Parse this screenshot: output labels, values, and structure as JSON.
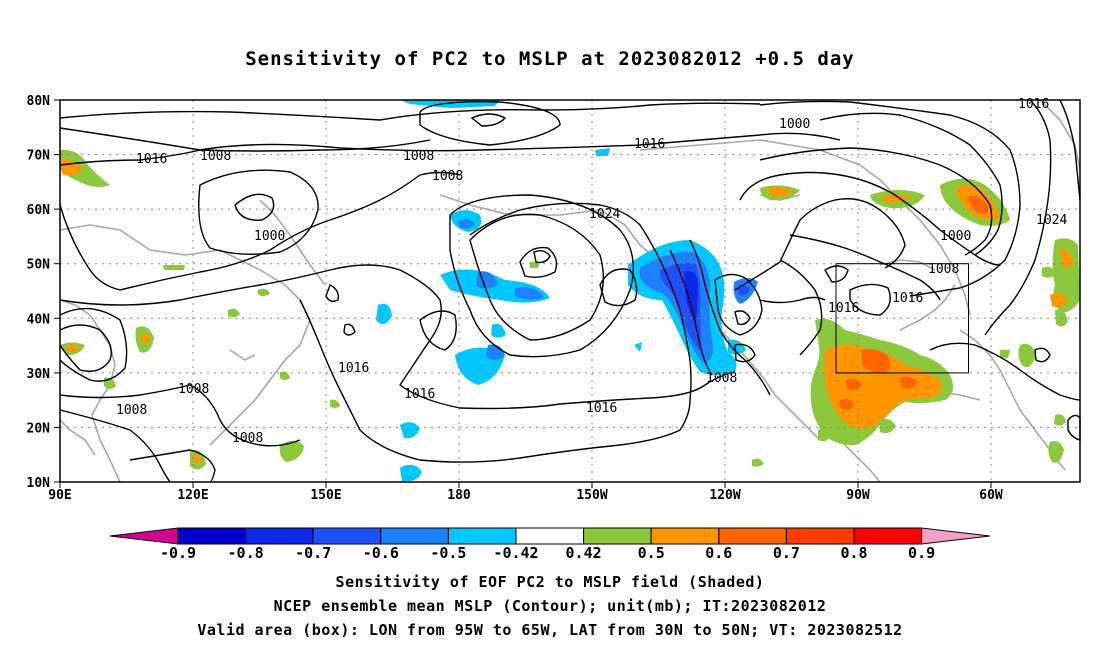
{
  "title": "Sensitivity of PC2 to MSLP at 2023082012 +0.5 day",
  "lat_labels": [
    "80N",
    "70N",
    "60N",
    "50N",
    "40N",
    "30N",
    "20N",
    "10N"
  ],
  "lon_labels": [
    "90E",
    "120E",
    "150E",
    "180",
    "150W",
    "120W",
    "90W",
    "60W"
  ],
  "contour_labels": {
    "c1016_a": "1016",
    "c1008_a": "1008",
    "c1008_b": "1008",
    "c1008_c": "1008",
    "c1016_b": "1016",
    "c1000_a": "1000",
    "c1000_b": "1000",
    "c1024_a": "1024",
    "c1000_c": "1000",
    "c1008_d": "1008",
    "c1016_c": "1016",
    "c1016_d": "1016",
    "c1024_b": "1024",
    "c1016_e": "1016",
    "c1016_f": "1016",
    "c1016_g": "1016",
    "c1008_e": "1008",
    "c1008_f": "1008",
    "c1008_g": "1008",
    "c1008_h": "1008"
  },
  "colorbar": {
    "labels": [
      "-0.9",
      "-0.8",
      "-0.7",
      "-0.6",
      "-0.5",
      "-0.42",
      "0.42",
      "0.5",
      "0.6",
      "0.7",
      "0.8",
      "0.9"
    ],
    "colors": {
      "left_end": "#d2008c",
      "bins": [
        "#0000c8",
        "#0a28e6",
        "#1e50ff",
        "#1e82ff",
        "#00c8ff",
        "#ffffff",
        "#8cc83c",
        "#ff9600",
        "#ff6400",
        "#ff3c00",
        "#ff0000"
      ],
      "right_end": "#f5a0c8"
    }
  },
  "caption": {
    "line1": "Sensitivity of EOF PC2 to MSLP field (Shaded)",
    "line2": "NCEP ensemble mean MSLP (Contour); unit(mb); IT:2023082012",
    "line3": "Valid area (box): LON from 95W to 65W, LAT from 30N to 50N; VT: 2023082512"
  }
}
